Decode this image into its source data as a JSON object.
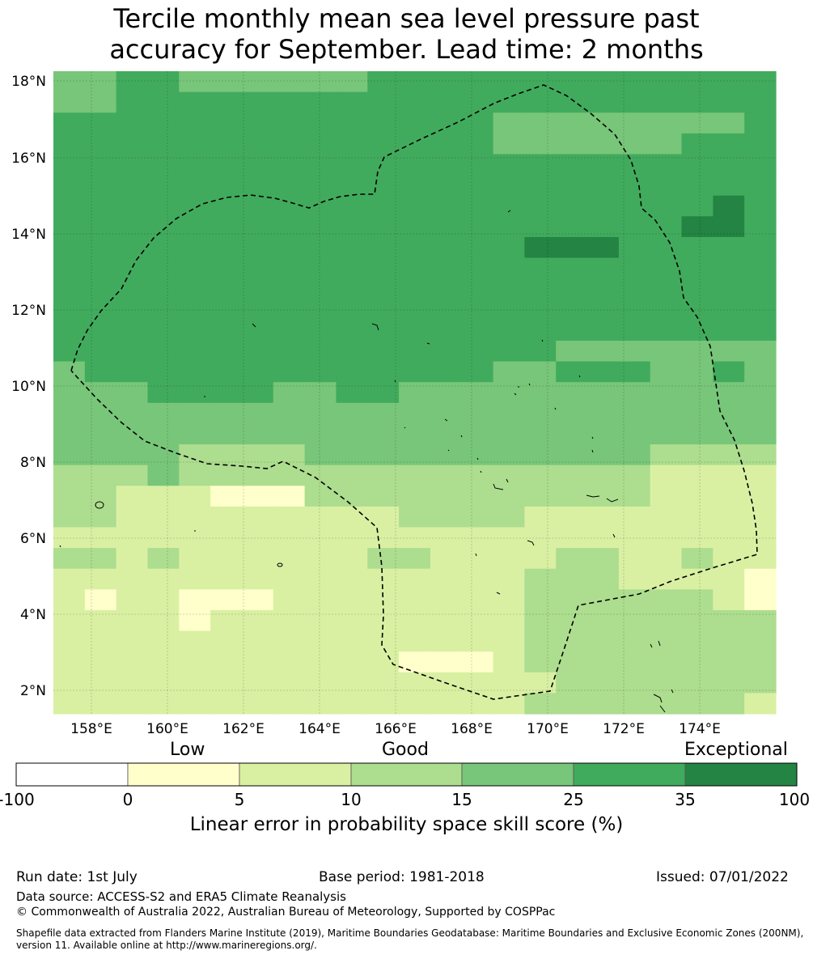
{
  "title_line1": "Tercile monthly mean sea level pressure past",
  "title_line2": "accuracy for September. Lead time: 2 months",
  "map": {
    "lon_range": [
      157,
      176
    ],
    "lat_range": [
      1.4,
      18.3
    ],
    "lon_ticks": [
      "158°E",
      "160°E",
      "162°E",
      "164°E",
      "166°E",
      "168°E",
      "170°E",
      "172°E",
      "174°E"
    ],
    "lat_ticks": [
      "18°N",
      "16°N",
      "14°N",
      "12°N",
      "10°N",
      "8°N",
      "6°N",
      "4°N",
      "2°N"
    ],
    "boundary_style": "dashed black",
    "grid": true
  },
  "colorbar": {
    "category_labels": [
      "Low",
      "Good",
      "Exceptional"
    ],
    "ticks": [
      "-100",
      "0",
      "5",
      "10",
      "15",
      "25",
      "35",
      "100"
    ],
    "colors": [
      "#ffffff",
      "#ffffcc",
      "#d9f0a3",
      "#addd8e",
      "#78c679",
      "#41ab5d",
      "#238443"
    ],
    "label": "Linear error in probability space skill score (%)"
  },
  "footer": {
    "run_date": "Run date: 1st July",
    "base_period": "Base period: 1981-2018",
    "issued": "Issued: 07/01/2022",
    "data_source": "Data source: ACCESS-S2 and ERA5 Climate Reanalysis",
    "copyright": "© Commonwealth of Australia 2022, Australian Bureau of Meteorology, Supported by COSPPac",
    "shapefile": "Shapefile data extracted from Flanders Marine Institute (2019), Maritime Boundaries Geodatabase: Maritime Boundaries and Exclusive Economic Zones (200NM), version 11. Available online at http://www.marineregions.org/."
  }
}
